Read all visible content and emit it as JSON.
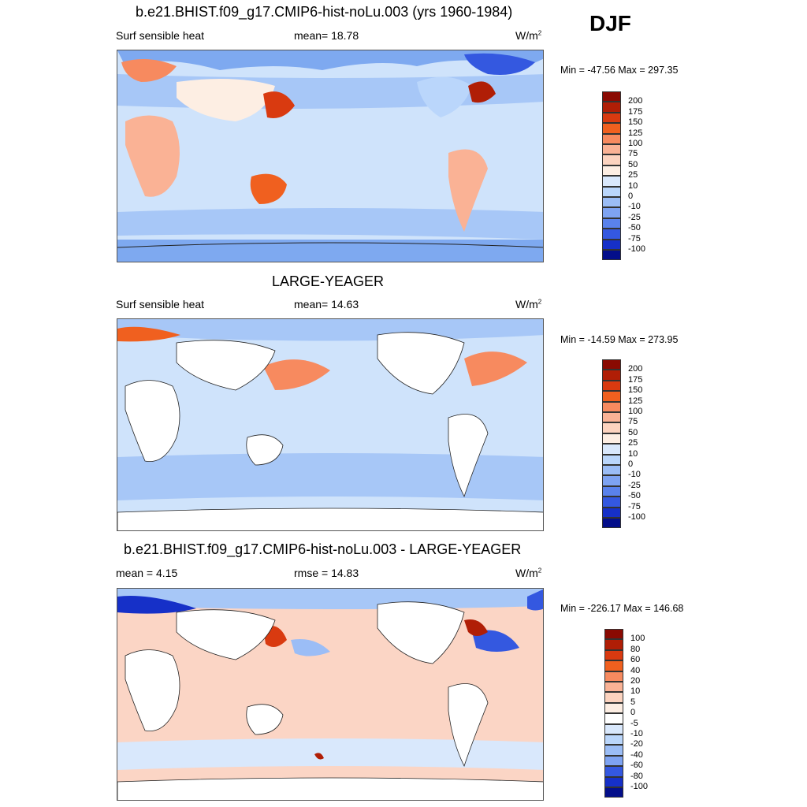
{
  "season": "DJF",
  "units_text": "W/m",
  "units_sup": "2",
  "panels": [
    {
      "title": "b.e21.BHIST.f09_g17.CMIP6-hist-noLu.003 (yrs 1960-1984)",
      "left_label": "Surf sensible heat",
      "center_label": "mean=  18.78",
      "minmax": "Min = -47.56 Max = 297.35"
    },
    {
      "title": "LARGE-YEAGER",
      "left_label": "Surf sensible heat",
      "center_label": "mean=  14.63",
      "minmax": "Min = -14.59 Max = 273.95"
    },
    {
      "title": "b.e21.BHIST.f09_g17.CMIP6-hist-noLu.003 - LARGE-YEAGER",
      "left_label": "mean =   4.15",
      "center_label": "rmse =   14.83",
      "minmax": "Min = -226.17 Max = 146.68"
    }
  ],
  "colors": {
    "land": "#ffffff",
    "coast": "#222222",
    "ocean_light": "#cfe3fb",
    "ocean_blue": "#a7c7f7",
    "ocean_mid": "#7ea9f0",
    "ocean_deep": "#4f80e6",
    "diff_bg": "#fbd5c5"
  },
  "chart_data": [
    {
      "type": "heatmap",
      "variable": "Surf sensible heat",
      "title": "b.e21.BHIST.f09_g17.CMIP6-hist-noLu.003 (yrs 1960-1984)",
      "mean": 18.78,
      "min": -47.56,
      "max": 297.35,
      "units": "W/m2",
      "colorbar_levels": [
        "200",
        "175",
        "150",
        "125",
        "100",
        "75",
        "50",
        "25",
        "10",
        "0",
        "-10",
        "-25",
        "-50",
        "-75",
        "-100"
      ],
      "colorbar_colors": [
        "#8a0a02",
        "#b01e06",
        "#d93a10",
        "#f0601f",
        "#f78a5f",
        "#fab295",
        "#fcd3bf",
        "#fdeee3",
        "#d9e8fc",
        "#bad6fb",
        "#9bbdf6",
        "#7ea3f2",
        "#5a82ec",
        "#3458e0",
        "#1630c8",
        "#030e8a"
      ]
    },
    {
      "type": "heatmap",
      "variable": "Surf sensible heat",
      "title": "LARGE-YEAGER",
      "mean": 14.63,
      "min": -14.59,
      "max": 273.95,
      "units": "W/m2",
      "colorbar_levels": [
        "200",
        "175",
        "150",
        "125",
        "100",
        "75",
        "50",
        "25",
        "10",
        "0",
        "-10",
        "-25",
        "-50",
        "-75",
        "-100"
      ],
      "colorbar_colors": [
        "#8a0a02",
        "#b01e06",
        "#d93a10",
        "#f0601f",
        "#f78a5f",
        "#fab295",
        "#fcd3bf",
        "#fdeee3",
        "#d9e8fc",
        "#bad6fb",
        "#9bbdf6",
        "#7ea3f2",
        "#5a82ec",
        "#3458e0",
        "#1630c8",
        "#030e8a"
      ]
    },
    {
      "type": "heatmap",
      "title": "b.e21.BHIST.f09_g17.CMIP6-hist-noLu.003 - LARGE-YEAGER",
      "mean": 4.15,
      "rmse": 14.83,
      "min": -226.17,
      "max": 146.68,
      "units": "W/m2",
      "colorbar_levels": [
        "100",
        "80",
        "60",
        "40",
        "20",
        "10",
        "5",
        "0",
        "-5",
        "-10",
        "-20",
        "-40",
        "-60",
        "-80",
        "-100"
      ],
      "colorbar_colors": [
        "#8a0a02",
        "#b01e06",
        "#d93a10",
        "#f0601f",
        "#f78a5f",
        "#fab295",
        "#fcd3bf",
        "#fdeee3",
        "#ffffff",
        "#d9e8fc",
        "#bad6fb",
        "#9bbdf6",
        "#7ea3f2",
        "#3458e0",
        "#1630c8",
        "#030e8a"
      ]
    }
  ]
}
